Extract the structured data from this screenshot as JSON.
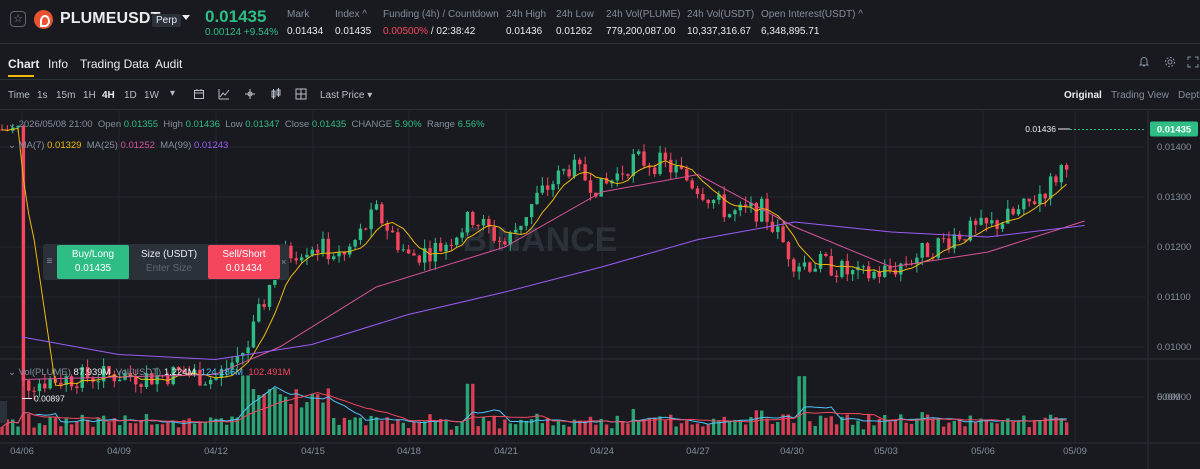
{
  "header": {
    "star_icon": "star-outline-icon",
    "symbol": "PLUMEUSDT",
    "perp_badge": "Perp",
    "last_price": "0.01435",
    "change": "0.00124 +9.54%",
    "stats": [
      {
        "key": "Mark",
        "value": "0.01434"
      },
      {
        "key": "Index",
        "value": "0.01435"
      },
      {
        "key": "Funding (4h) / Countdown",
        "value_red": "0.00500%",
        "value": " / 02:38:42"
      },
      {
        "key": "24h High",
        "value": "0.01436"
      },
      {
        "key": "24h Low",
        "value": "0.01262"
      },
      {
        "key": "24h Vol(PLUME)",
        "value": "779,200,087.00"
      },
      {
        "key": "24h Vol(USDT)",
        "value": "10,337,316.67"
      },
      {
        "key": "Open Interest(USDT)",
        "value": "6,348,895.71"
      }
    ]
  },
  "tabs": [
    "Chart",
    "Info",
    "Trading Data",
    "Audit"
  ],
  "toolbar": {
    "intervals": [
      "Time",
      "1s",
      "15m",
      "1H",
      "4H",
      "1D",
      "1W"
    ],
    "active_interval": "4H",
    "price_source": "Last Price",
    "views": [
      "Original",
      "Trading View",
      "Depth"
    ],
    "active_view": "Original"
  },
  "legend": {
    "date": "2026/05/08 21:00",
    "open_label": "Open",
    "open": "0.01355",
    "high_label": "High",
    "high": "0.01436",
    "low_label": "Low",
    "low": "0.01347",
    "close_label": "Close",
    "close": "0.01435",
    "change_label": "CHANGE",
    "change": "5.90%",
    "range_label": "Range",
    "range": "6.56%",
    "ma7_label": "MA(7)",
    "ma7": "0.01329",
    "ma25_label": "MA(25)",
    "ma25": "0.01252",
    "ma99_label": "MA(99)",
    "ma99": "0.01243"
  },
  "volume_legend": {
    "vol_plume_label": "Vol(PLUME)",
    "vol_plume": "87.939M",
    "vol_usdt_label": "Vol(USDT)",
    "vol_usdt": "1.224M",
    "ma1": "124.186M",
    "ma2": "102.491M"
  },
  "order": {
    "buy_label": "Buy/Long",
    "buy_price": "0.01435",
    "size_label": "Size (USDT)",
    "size_placeholder": "Enter Size",
    "sell_label": "Sell/Short",
    "sell_price": "0.01434"
  },
  "watermark": "BINANCE",
  "colors": {
    "up": "#2ebd85",
    "down": "#f6465d",
    "ma7": "#f0b90b",
    "ma25": "#d9539b",
    "ma99": "#9b5cf6",
    "vol_ma1": "#4fc3f7",
    "vol_ma2": "#f6465d"
  },
  "chart_data": {
    "type": "candlestick",
    "y_ticks": [
      "0.01400",
      "0.01300",
      "0.01200",
      "0.01100",
      "0.01000",
      "0.00900"
    ],
    "x_ticks": [
      "04/06",
      "04/09",
      "04/12",
      "04/15",
      "04/18",
      "04/21",
      "04/24",
      "04/27",
      "04/30",
      "05/03",
      "05/06",
      "05/09"
    ],
    "volume_tick": "500M",
    "price_tag": "0.01435",
    "high_marker": "0.01436",
    "low_marker": "0.00897",
    "close_path": [
      [
        "04/06",
        0.00925
      ],
      [
        "04/07",
        0.00935
      ],
      [
        "04/08",
        0.0094
      ],
      [
        "04/09",
        0.00945
      ],
      [
        "04/10",
        0.0094
      ],
      [
        "04/11",
        0.0095
      ],
      [
        "04/12",
        0.00935
      ],
      [
        "04/13",
        0.01
      ],
      [
        "04/14",
        0.0118
      ],
      [
        "04/15",
        0.01205
      ],
      [
        "04/16",
        0.0118
      ],
      [
        "04/17",
        0.0127
      ],
      [
        "04/18",
        0.0118
      ],
      [
        "04/19",
        0.012
      ],
      [
        "04/20",
        0.0126
      ],
      [
        "04/21",
        0.01205
      ],
      [
        "04/22",
        0.013
      ],
      [
        "04/23",
        0.0136
      ],
      [
        "04/24",
        0.01315
      ],
      [
        "04/25",
        0.01375
      ],
      [
        "04/26",
        0.01365
      ],
      [
        "04/27",
        0.0132
      ],
      [
        "04/28",
        0.01265
      ],
      [
        "04/29",
        0.01275
      ],
      [
        "04/30",
        0.0117
      ],
      [
        "05/01",
        0.01165
      ],
      [
        "05/02",
        0.0114
      ],
      [
        "05/03",
        0.01155
      ],
      [
        "05/04",
        0.0119
      ],
      [
        "05/05",
        0.01225
      ],
      [
        "05/06",
        0.0124
      ],
      [
        "05/07",
        0.0127
      ],
      [
        "05/08",
        0.0133
      ],
      [
        "05/09",
        0.01435
      ]
    ],
    "ma25_path": [
      [
        "04/06",
        0.00935
      ],
      [
        "04/12",
        0.00945
      ],
      [
        "04/14",
        0.01
      ],
      [
        "04/17",
        0.0112
      ],
      [
        "04/21",
        0.012
      ],
      [
        "04/24",
        0.0131
      ],
      [
        "04/27",
        0.01345
      ],
      [
        "04/30",
        0.0124
      ],
      [
        "05/03",
        0.0116
      ],
      [
        "05/06",
        0.0119
      ],
      [
        "05/09",
        0.01252
      ]
    ],
    "ma99_path": [
      [
        "04/06",
        0.0102
      ],
      [
        "04/09",
        0.00985
      ],
      [
        "04/12",
        0.00975
      ],
      [
        "04/15",
        0.01005
      ],
      [
        "04/18",
        0.01065
      ],
      [
        "04/21",
        0.0111
      ],
      [
        "04/24",
        0.0116
      ],
      [
        "04/27",
        0.01215
      ],
      [
        "04/30",
        0.0125
      ],
      [
        "05/03",
        0.0123
      ],
      [
        "05/06",
        0.0122
      ],
      [
        "05/09",
        0.01243
      ]
    ]
  }
}
